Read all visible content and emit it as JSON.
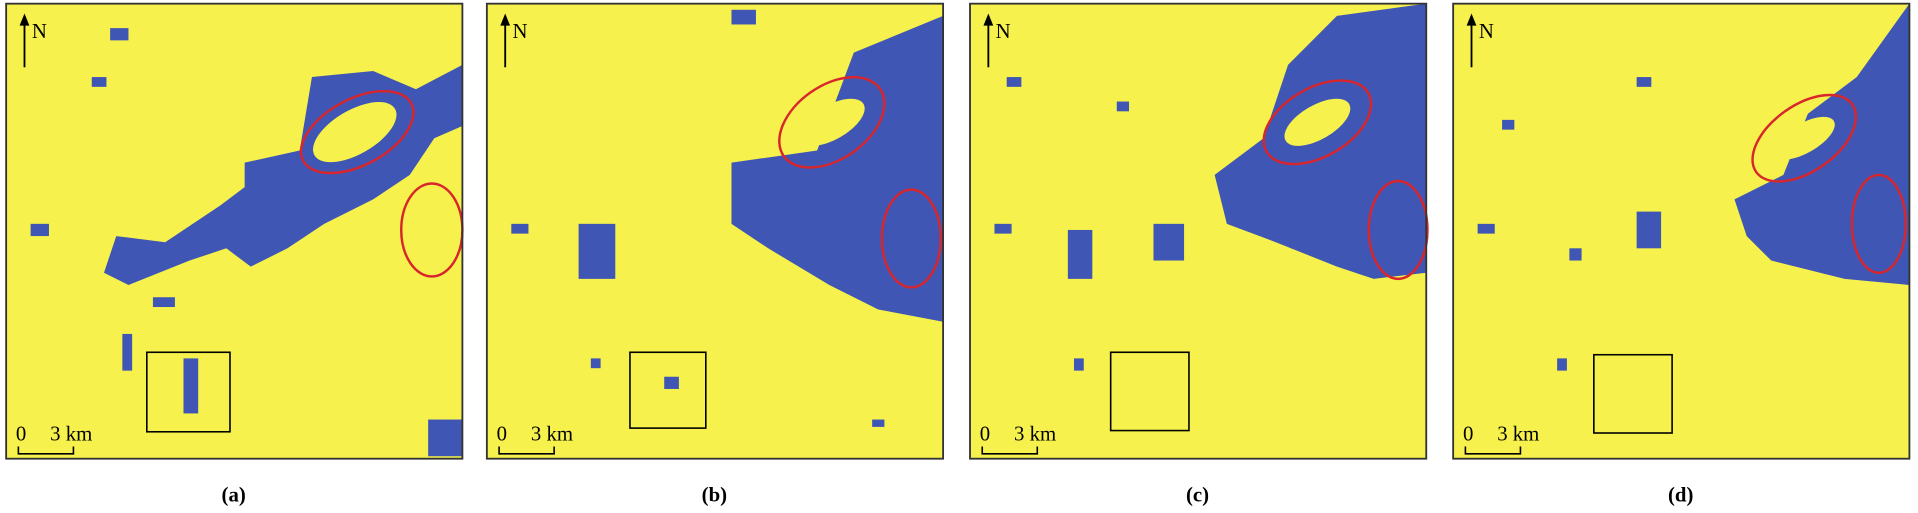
{
  "panels": [
    {
      "label": "(a)",
      "north": "N",
      "scale_start": "0",
      "scale_end": "3 km"
    },
    {
      "label": "(b)",
      "north": "N",
      "scale_start": "0",
      "scale_end": "3 km"
    },
    {
      "label": "(c)",
      "north": "N",
      "scale_start": "0",
      "scale_end": "3 km"
    },
    {
      "label": "(d)",
      "north": "N",
      "scale_start": "0",
      "scale_end": "3 km"
    }
  ]
}
